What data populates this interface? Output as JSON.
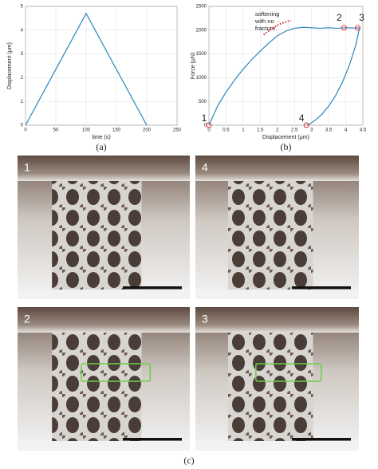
{
  "chart_data": [
    {
      "type": "line",
      "caption": "(a)",
      "x_label": "time (s)",
      "y_label": "Displacement (μm)",
      "xlim": [
        0,
        250
      ],
      "xticks": [
        0,
        50,
        100,
        150,
        200,
        250
      ],
      "ylim": [
        0,
        5
      ],
      "yticks": [
        0,
        1,
        2,
        3,
        4,
        5
      ],
      "grid": true,
      "series": [
        {
          "color": "#2b86c0",
          "x": [
            0,
            100,
            200
          ],
          "values": [
            0,
            4.7,
            0
          ]
        }
      ]
    },
    {
      "type": "line",
      "caption": "(b)",
      "x_label": "Displacement (μm)",
      "y_label": "Force (μN)",
      "xlim": [
        0,
        4.5
      ],
      "xticks": [
        0,
        0.5,
        1,
        1.5,
        2,
        2.5,
        3,
        3.5,
        4,
        4.5
      ],
      "ylim": [
        0,
        2500
      ],
      "yticks": [
        0,
        500,
        1000,
        1500,
        2000,
        2500
      ],
      "grid": true,
      "annotation": [
        "softening",
        "with no",
        "fracture"
      ],
      "series": [
        {
          "color": "#2b86c0",
          "x": [
            0,
            0.25,
            0.5,
            0.75,
            1,
            1.25,
            1.5,
            1.75,
            2,
            2.25,
            2.5,
            2.75,
            3,
            3.25,
            3.5,
            3.75,
            4,
            4.25,
            4.4
          ],
          "values": [
            0,
            400,
            700,
            950,
            1180,
            1380,
            1560,
            1730,
            1880,
            1980,
            2040,
            2060,
            2050,
            2040,
            2050,
            2040,
            2050,
            2045,
            2050
          ]
        },
        {
          "color": "#2b86c0",
          "x": [
            4.4,
            4.3,
            4.1,
            3.9,
            3.7,
            3.5,
            3.3,
            3.1,
            2.95,
            2.85
          ],
          "values": [
            2050,
            1700,
            1250,
            900,
            620,
            400,
            230,
            100,
            30,
            0
          ]
        }
      ],
      "markers": {
        "color": "#e03030",
        "labels": [
          "1",
          "2",
          "3",
          "4"
        ],
        "x": [
          0,
          3.95,
          4.35,
          2.85
        ],
        "values": [
          0,
          2050,
          2050,
          0
        ]
      }
    }
  ],
  "figure": {
    "panels": [
      {
        "label": "1"
      },
      {
        "label": "4"
      },
      {
        "label": "2"
      },
      {
        "label": "3"
      }
    ],
    "caption": "(c)"
  }
}
